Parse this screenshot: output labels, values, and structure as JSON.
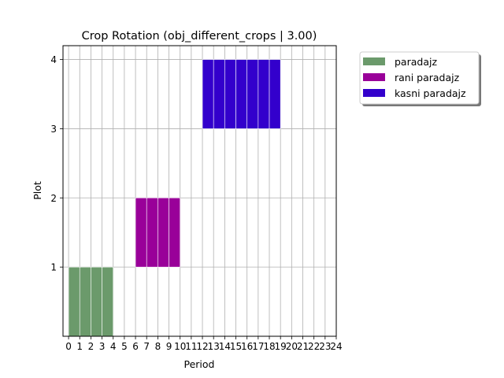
{
  "chart_data": {
    "type": "bar",
    "title": "Crop Rotation (obj_different_crops | 3.00)",
    "xlabel": "Period",
    "ylabel": "Plot",
    "xlim": [
      -0.5,
      24
    ],
    "ylim": [
      0,
      4.2
    ],
    "x_ticks": [
      "0",
      "1",
      "2",
      "3",
      "4",
      "5",
      "6",
      "7",
      "8",
      "9",
      "10",
      "11",
      "12",
      "13",
      "14",
      "15",
      "16",
      "17",
      "18",
      "19",
      "20",
      "21",
      "22",
      "23",
      "24"
    ],
    "y_ticks": [
      "1",
      "2",
      "3",
      "4"
    ],
    "grid": true,
    "legend_position": "top-right outside",
    "series": [
      {
        "name": "paradajz",
        "color": "#6b9a6b",
        "plot": 0,
        "periods": [
          0,
          1,
          2,
          3
        ]
      },
      {
        "name": "rani paradajz",
        "color": "#990099",
        "plot": 1,
        "periods": [
          6,
          7,
          8,
          9
        ]
      },
      {
        "name": "kasni paradajz",
        "color": "#3300cc",
        "plot": 3,
        "periods": [
          12,
          13,
          14,
          15,
          16,
          17,
          18
        ]
      }
    ]
  }
}
